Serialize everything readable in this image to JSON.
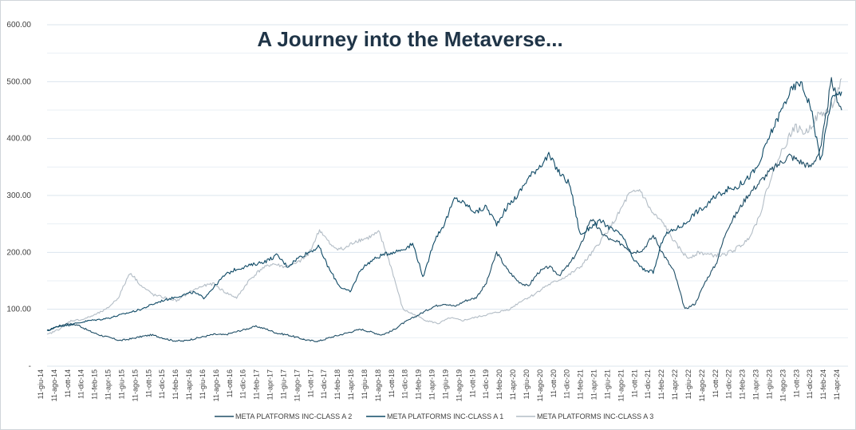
{
  "chart_data": {
    "type": "line",
    "title": "A Journey into the Metaverse...",
    "xlabel": "",
    "ylabel": "",
    "ylim": [
      0,
      600
    ],
    "grid": "horizontal",
    "legend_position": "bottom",
    "y_ticks": [
      "-",
      "100.00",
      "200.00",
      "300.00",
      "400.00",
      "500.00",
      "600.00"
    ],
    "x_ticks": [
      "11-giu-14",
      "11-ago-14",
      "11-ott-14",
      "11-dic-14",
      "11-feb-15",
      "11-apr-15",
      "11-giu-15",
      "11-ago-15",
      "11-ott-15",
      "11-dic-15",
      "11-feb-16",
      "11-apr-16",
      "11-giu-16",
      "11-ago-16",
      "11-ott-16",
      "11-dic-16",
      "11-feb-17",
      "11-apr-17",
      "11-giu-17",
      "11-ago-17",
      "11-ott-17",
      "11-dic-17",
      "11-feb-18",
      "11-apr-18",
      "11-giu-18",
      "11-ago-18",
      "11-ott-18",
      "11-dic-18",
      "11-feb-19",
      "11-apr-19",
      "11-giu-19",
      "11-ago-19",
      "11-ott-19",
      "11-dic-19",
      "11-feb-20",
      "11-apr-20",
      "11-giu-20",
      "11-ago-20",
      "11-ott-20",
      "11-dic-20",
      "11-feb-21",
      "11-apr-21",
      "11-giu-21",
      "11-ago-21",
      "11-ott-21",
      "11-dic-21",
      "11-feb-22",
      "11-apr-22",
      "11-giu-22",
      "11-ago-22",
      "11-ott-22",
      "11-dic-22",
      "11-feb-23",
      "11-apr-23",
      "11-giu-23",
      "11-ago-23",
      "11-ott-23",
      "11-dic-23",
      "11-feb-24",
      "11-apr-24"
    ],
    "series": [
      {
        "name": "META PLATFORMS INC-CLASS A 2",
        "color": "#1f4e66",
        "values": [
          62,
          70,
          75,
          72,
          62,
          55,
          50,
          45,
          48,
          52,
          55,
          50,
          45,
          44,
          48,
          52,
          56,
          55,
          60,
          65,
          70,
          65,
          58,
          55,
          50,
          45,
          44,
          50,
          55,
          60,
          65,
          60,
          55,
          62,
          75,
          85,
          95,
          105,
          110,
          105,
          115,
          120,
          145,
          200,
          170,
          150,
          140,
          165,
          175,
          160,
          180,
          210,
          260,
          235,
          220,
          215,
          200,
          205,
          230,
          195,
          165,
          100,
          110,
          150,
          180,
          240,
          270,
          300,
          320,
          340,
          355,
          370,
          360,
          350,
          380,
          500,
          450
        ]
      },
      {
        "name": "META PLATFORMS INC-CLASS A 1",
        "color": "#0f4a66",
        "values": [
          62,
          70,
          72,
          76,
          80,
          82,
          85,
          90,
          95,
          100,
          108,
          115,
          120,
          125,
          130,
          120,
          140,
          160,
          170,
          175,
          180,
          185,
          195,
          175,
          190,
          200,
          210,
          170,
          140,
          130,
          170,
          185,
          195,
          200,
          205,
          215,
          155,
          220,
          250,
          295,
          285,
          270,
          280,
          250,
          280,
          300,
          330,
          350,
          370,
          340,
          320,
          230,
          245,
          255,
          240,
          230,
          190,
          170,
          165,
          230,
          240,
          250,
          270,
          280,
          300,
          310,
          315,
          330,
          350,
          400,
          440,
          480,
          500,
          460,
          360,
          470,
          480
        ]
      },
      {
        "name": "META PLATFORMS INC-CLASS A 3",
        "color": "#b3bdc6",
        "values": [
          55,
          65,
          80,
          82,
          90,
          100,
          120,
          165,
          140,
          125,
          120,
          115,
          130,
          140,
          145,
          130,
          120,
          150,
          170,
          180,
          175,
          180,
          195,
          240,
          210,
          205,
          220,
          225,
          235,
          175,
          100,
          90,
          80,
          75,
          85,
          80,
          85,
          90,
          95,
          100,
          115,
          125,
          140,
          150,
          160,
          175,
          200,
          230,
          260,
          300,
          310,
          270,
          250,
          215,
          190,
          200,
          195,
          195,
          205,
          220,
          260,
          330,
          380,
          420,
          410,
          440,
          450,
          500
        ]
      }
    ]
  }
}
